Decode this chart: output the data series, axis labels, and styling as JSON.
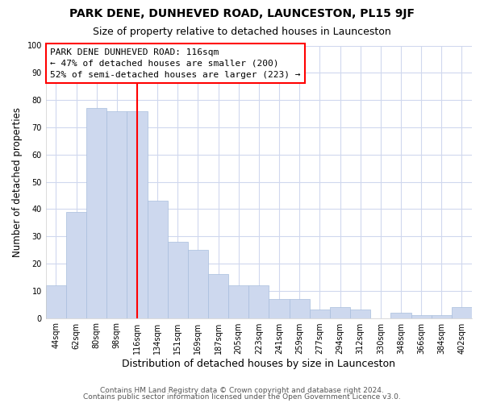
{
  "title": "PARK DENE, DUNHEVED ROAD, LAUNCESTON, PL15 9JF",
  "subtitle": "Size of property relative to detached houses in Launceston",
  "xlabel": "Distribution of detached houses by size in Launceston",
  "ylabel": "Number of detached properties",
  "categories": [
    "44sqm",
    "62sqm",
    "80sqm",
    "98sqm",
    "116sqm",
    "134sqm",
    "151sqm",
    "169sqm",
    "187sqm",
    "205sqm",
    "223sqm",
    "241sqm",
    "259sqm",
    "277sqm",
    "294sqm",
    "312sqm",
    "330sqm",
    "348sqm",
    "366sqm",
    "384sqm",
    "402sqm"
  ],
  "values": [
    12,
    39,
    77,
    76,
    76,
    43,
    28,
    25,
    16,
    12,
    12,
    7,
    7,
    3,
    4,
    3,
    0,
    2,
    1,
    1,
    4
  ],
  "bar_color": "#cdd8ee",
  "bar_edge_color": "#a8bedd",
  "red_line_index": 4,
  "annotation_title": "PARK DENE DUNHEVED ROAD: 116sqm",
  "annotation_line1": "← 47% of detached houses are smaller (200)",
  "annotation_line2": "52% of semi-detached houses are larger (223) →",
  "ylim": [
    0,
    100
  ],
  "yticks": [
    0,
    10,
    20,
    30,
    40,
    50,
    60,
    70,
    80,
    90,
    100
  ],
  "footer1": "Contains HM Land Registry data © Crown copyright and database right 2024.",
  "footer2": "Contains public sector information licensed under the Open Government Licence v3.0.",
  "background_color": "#ffffff",
  "plot_background": "#ffffff",
  "grid_color": "#d0d8ee"
}
